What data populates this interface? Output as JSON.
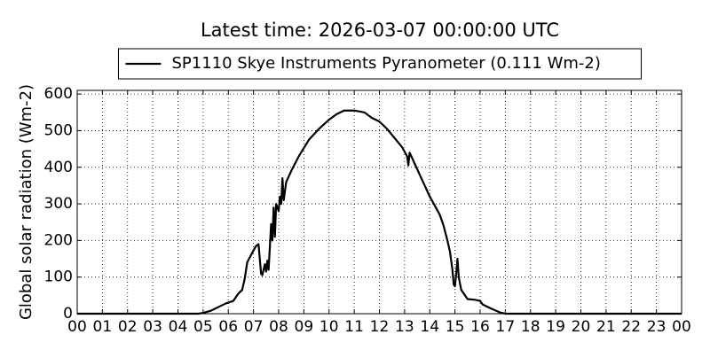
{
  "chart_data": {
    "type": "line",
    "title": "Latest time: 2026-03-07 00:00:00 UTC",
    "ylabel": "Global solar radiation (Wm-2)",
    "legend": "upper center",
    "grid": true,
    "xlim": [
      0,
      24
    ],
    "ylim": [
      0,
      610
    ],
    "xticks": [
      {
        "value": 0,
        "label": "00"
      },
      {
        "value": 1,
        "label": "01"
      },
      {
        "value": 2,
        "label": "02"
      },
      {
        "value": 3,
        "label": "03"
      },
      {
        "value": 4,
        "label": "04"
      },
      {
        "value": 5,
        "label": "05"
      },
      {
        "value": 6,
        "label": "06"
      },
      {
        "value": 7,
        "label": "07"
      },
      {
        "value": 8,
        "label": "08"
      },
      {
        "value": 9,
        "label": "09"
      },
      {
        "value": 10,
        "label": "10"
      },
      {
        "value": 11,
        "label": "11"
      },
      {
        "value": 12,
        "label": "12"
      },
      {
        "value": 13,
        "label": "13"
      },
      {
        "value": 14,
        "label": "14"
      },
      {
        "value": 15,
        "label": "15"
      },
      {
        "value": 16,
        "label": "16"
      },
      {
        "value": 17,
        "label": "17"
      },
      {
        "value": 18,
        "label": "18"
      },
      {
        "value": 19,
        "label": "19"
      },
      {
        "value": 20,
        "label": "20"
      },
      {
        "value": 21,
        "label": "21"
      },
      {
        "value": 22,
        "label": "22"
      },
      {
        "value": 23,
        "label": "23"
      },
      {
        "value": 24,
        "label": "00"
      }
    ],
    "yticks": [
      0,
      100,
      200,
      300,
      400,
      500,
      600
    ],
    "x": [
      0,
      4.8,
      5.0,
      5.3,
      5.6,
      5.9,
      6.2,
      6.4,
      6.55,
      6.65,
      6.75,
      6.9,
      7.1,
      7.2,
      7.3,
      7.35,
      7.45,
      7.5,
      7.55,
      7.6,
      7.7,
      7.75,
      7.8,
      7.85,
      7.9,
      8.0,
      8.05,
      8.1,
      8.15,
      8.2,
      8.3,
      8.5,
      8.8,
      9.2,
      9.6,
      10.0,
      10.3,
      10.6,
      11.0,
      11.4,
      11.7,
      12.0,
      12.3,
      12.6,
      12.9,
      13.1,
      13.15,
      13.2,
      13.4,
      13.6,
      13.8,
      14.0,
      14.2,
      14.4,
      14.55,
      14.7,
      14.8,
      14.9,
      14.95,
      15.0,
      15.05,
      15.1,
      15.15,
      15.25,
      15.4,
      15.5,
      15.8,
      16.0,
      16.1,
      16.4,
      16.8,
      17.0,
      24
    ],
    "series": [
      {
        "name": "SP1110 Skye Instruments Pyranometer (0.111 Wm-2)",
        "color": "#000000",
        "values": [
          0,
          0,
          2,
          8,
          18,
          28,
          35,
          55,
          65,
          95,
          140,
          160,
          185,
          190,
          110,
          105,
          135,
          115,
          145,
          120,
          245,
          200,
          290,
          210,
          300,
          280,
          320,
          300,
          370,
          310,
          360,
          390,
          430,
          475,
          505,
          530,
          545,
          555,
          555,
          550,
          535,
          525,
          505,
          480,
          455,
          430,
          405,
          440,
          410,
          380,
          350,
          320,
          295,
          270,
          240,
          200,
          170,
          120,
          80,
          75,
          110,
          150,
          100,
          65,
          50,
          40,
          38,
          35,
          25,
          15,
          3,
          0,
          0
        ]
      }
    ]
  }
}
